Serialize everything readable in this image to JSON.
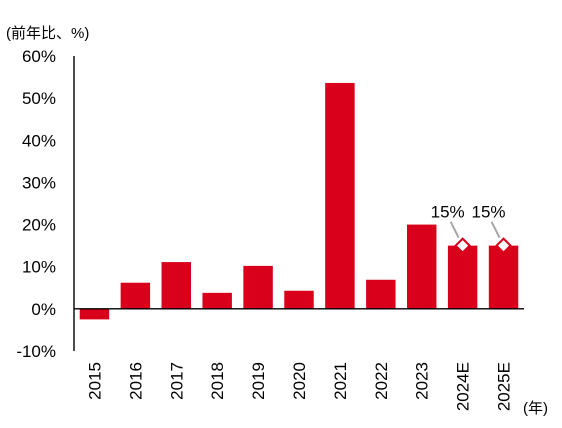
{
  "chart_data": {
    "type": "bar",
    "categories": [
      "2015",
      "2016",
      "2017",
      "2018",
      "2019",
      "2020",
      "2021",
      "2022",
      "2023",
      "2024E",
      "2025E"
    ],
    "values": [
      -2.5,
      6.2,
      11.1,
      3.8,
      10.2,
      4.3,
      53.6,
      6.9,
      20.0,
      15.0,
      15.0
    ],
    "forecast_categories": [
      "2024E",
      "2025E"
    ],
    "ylim": [
      -10,
      60
    ],
    "yticks": [
      -10,
      0,
      10,
      20,
      30,
      40,
      50,
      60
    ],
    "ytick_labels": [
      "-10%",
      "0%",
      "10%",
      "20%",
      "30%",
      "40%",
      "50%",
      "60%"
    ],
    "ylabel": "(前年比、%)",
    "xlabel": "(年)",
    "annotations": [
      {
        "category": "2024E",
        "label": "15%"
      },
      {
        "category": "2025E",
        "label": "15%"
      }
    ],
    "bar_color": "#d9001b",
    "marker_stroke_color": "#d9001b",
    "marker_fill_color": "#ffffff",
    "leader_line_color": "#a6a6a6",
    "grid": false,
    "legend": "none"
  }
}
